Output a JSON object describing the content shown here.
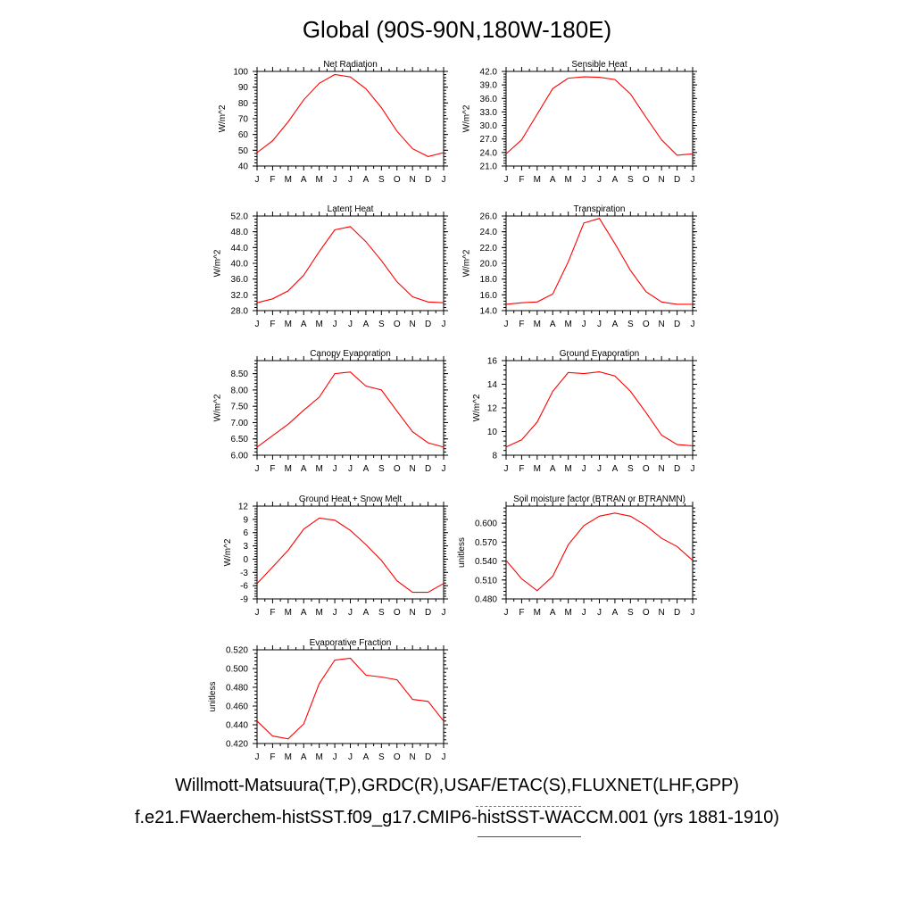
{
  "title": "Global (90S-90N,180W-180E)",
  "months": [
    "J",
    "F",
    "M",
    "A",
    "M",
    "J",
    "J",
    "A",
    "S",
    "O",
    "N",
    "D",
    "J"
  ],
  "line_color": "#ff0000",
  "legend": {
    "obs_label": "Willmott-Matsuura(T,P),GRDC(R),USAF/ETAC(S),FLUXNET(LHF,GPP)",
    "obs_color": "#6f6fff",
    "model_label": "f.e21.FWaerchem-histSST.f09_g17.CMIP6-histSST-WACCM.001 (yrs 1881-1910)",
    "model_color": "#ff0000"
  },
  "chart_data": [
    {
      "type": "line",
      "title": "Net Radiation",
      "ylabel": "W/m^2",
      "ylim": [
        40,
        100
      ],
      "yticks": [
        "40",
        "50",
        "60",
        "70",
        "80",
        "90",
        "100"
      ],
      "series": [
        {
          "values": [
            48.5,
            56,
            68,
            82,
            92.5,
            98,
            96.5,
            89,
            77,
            62,
            51,
            46,
            48.5
          ]
        }
      ]
    },
    {
      "type": "line",
      "title": "Sensible Heat",
      "ylabel": "W/m^2",
      "ylim": [
        21,
        42
      ],
      "yticks": [
        "21.0",
        "24.0",
        "27.0",
        "30.0",
        "33.0",
        "36.0",
        "39.0",
        "42.0"
      ],
      "series": [
        {
          "values": [
            23.7,
            26.8,
            32.5,
            38.2,
            40.5,
            40.8,
            40.7,
            40.2,
            37,
            31.8,
            26.8,
            23.4,
            23.7
          ]
        }
      ]
    },
    {
      "type": "line",
      "title": "Latent Heat",
      "ylabel": "W/m^2",
      "ylim": [
        28,
        52
      ],
      "yticks": [
        "28.0",
        "32.0",
        "36.0",
        "40.0",
        "44.0",
        "48.0",
        "52.0"
      ],
      "series": [
        {
          "values": [
            30,
            31,
            33,
            37,
            43,
            48.5,
            49.3,
            45.5,
            40.7,
            35.3,
            31.5,
            30.2,
            30
          ]
        }
      ]
    },
    {
      "type": "line",
      "title": "Transpiration",
      "ylabel": "W/m^2",
      "ylim": [
        14,
        26
      ],
      "yticks": [
        "14.0",
        "16.0",
        "18.0",
        "20.0",
        "22.0",
        "24.0",
        "26.0"
      ],
      "series": [
        {
          "values": [
            14.8,
            15,
            15.1,
            16.1,
            20.2,
            25.1,
            25.7,
            22.5,
            19.1,
            16.4,
            15.1,
            14.8,
            14.8
          ]
        }
      ]
    },
    {
      "type": "line",
      "title": "Canopy Evaporation",
      "ylabel": "W/m^2",
      "ylim": [
        6.0,
        8.9
      ],
      "yticks": [
        "6.00",
        "6.50",
        "7.00",
        "7.50",
        "8.00",
        "8.50"
      ],
      "series": [
        {
          "values": [
            6.25,
            6.6,
            6.95,
            7.38,
            7.78,
            8.5,
            8.55,
            8.12,
            8,
            7.35,
            6.72,
            6.38,
            6.25
          ]
        }
      ]
    },
    {
      "type": "line",
      "title": "Ground Evaporation",
      "ylabel": "W/m^2",
      "ylim": [
        8,
        16
      ],
      "yticks": [
        "8",
        "10",
        "12",
        "14",
        "16"
      ],
      "series": [
        {
          "values": [
            8.7,
            9.3,
            10.8,
            13.4,
            15,
            14.9,
            15.05,
            14.7,
            13.4,
            11.6,
            9.7,
            8.9,
            8.8
          ]
        }
      ]
    },
    {
      "type": "line",
      "title": "Ground Heat + Snow Melt",
      "ylabel": "W/m^2",
      "ylim": [
        -9,
        12
      ],
      "yticks": [
        "-9",
        "-6",
        "-3",
        "0",
        "3",
        "6",
        "9",
        "12"
      ],
      "series": [
        {
          "values": [
            -5.5,
            -1.8,
            2,
            6.8,
            9.3,
            8.8,
            6.5,
            3.3,
            -0.3,
            -4.9,
            -7.5,
            -7.5,
            -5.5
          ]
        }
      ]
    },
    {
      "type": "line",
      "title": "Soil moisture factor (BTRAN or BTRANMN)",
      "ylabel": "unitless",
      "ylim": [
        0.48,
        0.627
      ],
      "yticks": [
        "0.480",
        "0.510",
        "0.540",
        "0.570",
        "0.600"
      ],
      "series": [
        {
          "values": [
            0.541,
            0.512,
            0.493,
            0.516,
            0.566,
            0.596,
            0.611,
            0.616,
            0.611,
            0.596,
            0.576,
            0.563,
            0.541
          ]
        }
      ]
    },
    {
      "type": "line",
      "title": "Evaporative Fraction",
      "ylabel": "unitless",
      "ylim": [
        0.42,
        0.52
      ],
      "yticks": [
        "0.420",
        "0.440",
        "0.460",
        "0.480",
        "0.500",
        "0.520"
      ],
      "series": [
        {
          "values": [
            0.444,
            0.428,
            0.425,
            0.441,
            0.484,
            0.509,
            0.511,
            0.493,
            0.491,
            0.488,
            0.467,
            0.465,
            0.444
          ]
        }
      ]
    }
  ]
}
